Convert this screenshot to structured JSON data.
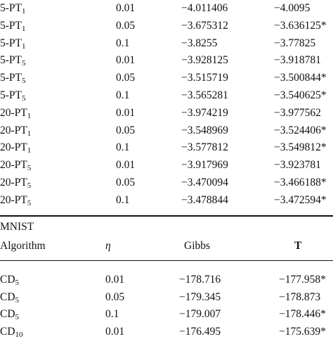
{
  "table": {
    "rows": [
      {
        "name": "5-PT",
        "sub": "1",
        "eta": "0.01",
        "gibbs": "−4.011406",
        "t": "−4.0095"
      },
      {
        "name": "5-PT",
        "sub": "1",
        "eta": "0.05",
        "gibbs": "−3.675312",
        "t": "−3.636125*"
      },
      {
        "name": "5-PT",
        "sub": "1",
        "eta": "0.1",
        "gibbs": "−3.8255",
        "t": "−3.77825"
      },
      {
        "name": "5-PT",
        "sub": "5",
        "eta": "0.01",
        "gibbs": "−3.928125",
        "t": "−3.918781"
      },
      {
        "name": "5-PT",
        "sub": "5",
        "eta": "0.05",
        "gibbs": "−3.515719",
        "t": "−3.500844*"
      },
      {
        "name": "5-PT",
        "sub": "5",
        "eta": "0.1",
        "gibbs": "−3.565281",
        "t": "−3.540625*"
      },
      {
        "name": "20-PT",
        "sub": "1",
        "eta": "0.01",
        "gibbs": "−3.974219",
        "t": "−3.977562"
      },
      {
        "name": "20-PT",
        "sub": "1",
        "eta": "0.05",
        "gibbs": "−3.548969",
        "t": "−3.524406*"
      },
      {
        "name": "20-PT",
        "sub": "1",
        "eta": "0.1",
        "gibbs": "−3.577812",
        "t": "−3.549812*"
      },
      {
        "name": "20-PT",
        "sub": "5",
        "eta": "0.01",
        "gibbs": "−3.917969",
        "t": "−3.923781"
      },
      {
        "name": "20-PT",
        "sub": "5",
        "eta": "0.05",
        "gibbs": "−3.470094",
        "t": "−3.466188*"
      },
      {
        "name": "20-PT",
        "sub": "5",
        "eta": "0.1",
        "gibbs": "−3.478844",
        "t": "−3.472594*"
      }
    ],
    "section": "MNIST",
    "header": [
      "Algorithm",
      "η",
      "Gibbs",
      "T"
    ],
    "rows2": [
      {
        "name": "CD",
        "sub": "5",
        "eta": "0.01",
        "gibbs": "−178.716",
        "t": "−177.958*"
      },
      {
        "name": "CD",
        "sub": "5",
        "eta": "0.05",
        "gibbs": "−179.345",
        "t": "−178.873"
      },
      {
        "name": "CD",
        "sub": "5",
        "eta": "0.1",
        "gibbs": "−179.007",
        "t": "−178.446*"
      },
      {
        "name": "CD",
        "sub": "10",
        "eta": "0.01",
        "gibbs": "−176.495",
        "t": "−175.639*"
      }
    ]
  }
}
